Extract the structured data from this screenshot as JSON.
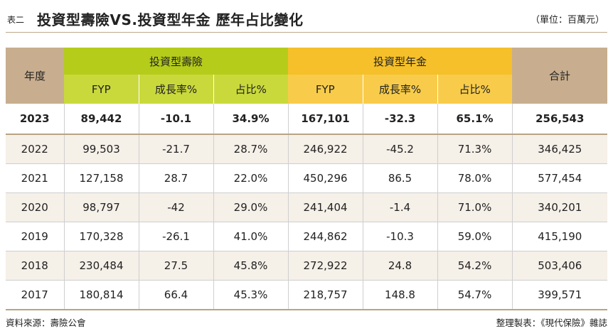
{
  "title": {
    "prefix": "表二",
    "text": "投資型壽險VS.投資型年金 歷年占比變化",
    "unit": "（單位：百萬元）"
  },
  "table": {
    "year_header": "年度",
    "group_insurance": "投資型壽險",
    "group_annuity": "投資型年金",
    "total_header": "合計",
    "sub_headers": [
      "FYP",
      "成長率%",
      "占比%"
    ],
    "rows": [
      {
        "year": "2023",
        "ins_fyp": "89,442",
        "ins_growth": "-10.1",
        "ins_share": "34.9%",
        "ann_fyp": "167,101",
        "ann_growth": "-32.3",
        "ann_share": "65.1%",
        "total": "256,543"
      },
      {
        "year": "2022",
        "ins_fyp": "99,503",
        "ins_growth": "-21.7",
        "ins_share": "28.7%",
        "ann_fyp": "246,922",
        "ann_growth": "-45.2",
        "ann_share": "71.3%",
        "total": "346,425"
      },
      {
        "year": "2021",
        "ins_fyp": "127,158",
        "ins_growth": "28.7",
        "ins_share": "22.0%",
        "ann_fyp": "450,296",
        "ann_growth": "86.5",
        "ann_share": "78.0%",
        "total": "577,454"
      },
      {
        "year": "2020",
        "ins_fyp": "98,797",
        "ins_growth": "-42",
        "ins_share": "29.0%",
        "ann_fyp": "241,404",
        "ann_growth": "-1.4",
        "ann_share": "71.0%",
        "total": "340,201"
      },
      {
        "year": "2019",
        "ins_fyp": "170,328",
        "ins_growth": "-26.1",
        "ins_share": "41.0%",
        "ann_fyp": "244,862",
        "ann_growth": "-10.3",
        "ann_share": "59.0%",
        "total": "415,190"
      },
      {
        "year": "2018",
        "ins_fyp": "230,484",
        "ins_growth": "27.5",
        "ins_share": "45.8%",
        "ann_fyp": "272,922",
        "ann_growth": "24.8",
        "ann_share": "54.2%",
        "total": "503,406"
      },
      {
        "year": "2017",
        "ins_fyp": "180,814",
        "ins_growth": "66.4",
        "ins_share": "45.3%",
        "ann_fyp": "218,757",
        "ann_growth": "148.8",
        "ann_share": "54.7%",
        "total": "399,571"
      }
    ]
  },
  "footer": {
    "source": "資料來源：壽險公會",
    "compiled": "整理製表：《現代保險》雜誌"
  },
  "colors": {
    "header_tan": "#c8ae8f",
    "insurance_green": "#b5cc1b",
    "annuity_yellow": "#f5c02a",
    "row_shade": "#f5f0e8"
  }
}
